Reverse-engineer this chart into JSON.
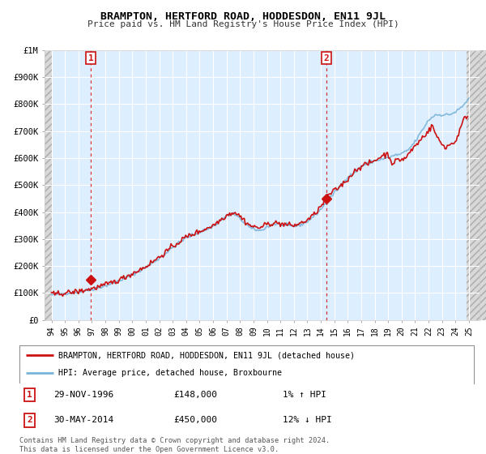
{
  "title": "BRAMPTON, HERTFORD ROAD, HODDESDON, EN11 9JL",
  "subtitle": "Price paid vs. HM Land Registry's House Price Index (HPI)",
  "background_color": "#ffffff",
  "plot_bg_color": "#ddeeff",
  "grid_color": "#ffffff",
  "sale1_date": "29-NOV-1996",
  "sale1_price": 148000,
  "sale1_hpi": "1% ↑ HPI",
  "sale2_date": "30-MAY-2014",
  "sale2_price": 450000,
  "sale2_hpi": "12% ↓ HPI",
  "legend_label1": "BRAMPTON, HERTFORD ROAD, HODDESDON, EN11 9JL (detached house)",
  "legend_label2": "HPI: Average price, detached house, Broxbourne",
  "footer": "Contains HM Land Registry data © Crown copyright and database right 2024.\nThis data is licensed under the Open Government Licence v3.0.",
  "sale1_x": 1996.917,
  "sale2_x": 2014.417,
  "ylim_max": 1000000,
  "xlim_min": 1993.5,
  "xlim_max": 2025.8
}
